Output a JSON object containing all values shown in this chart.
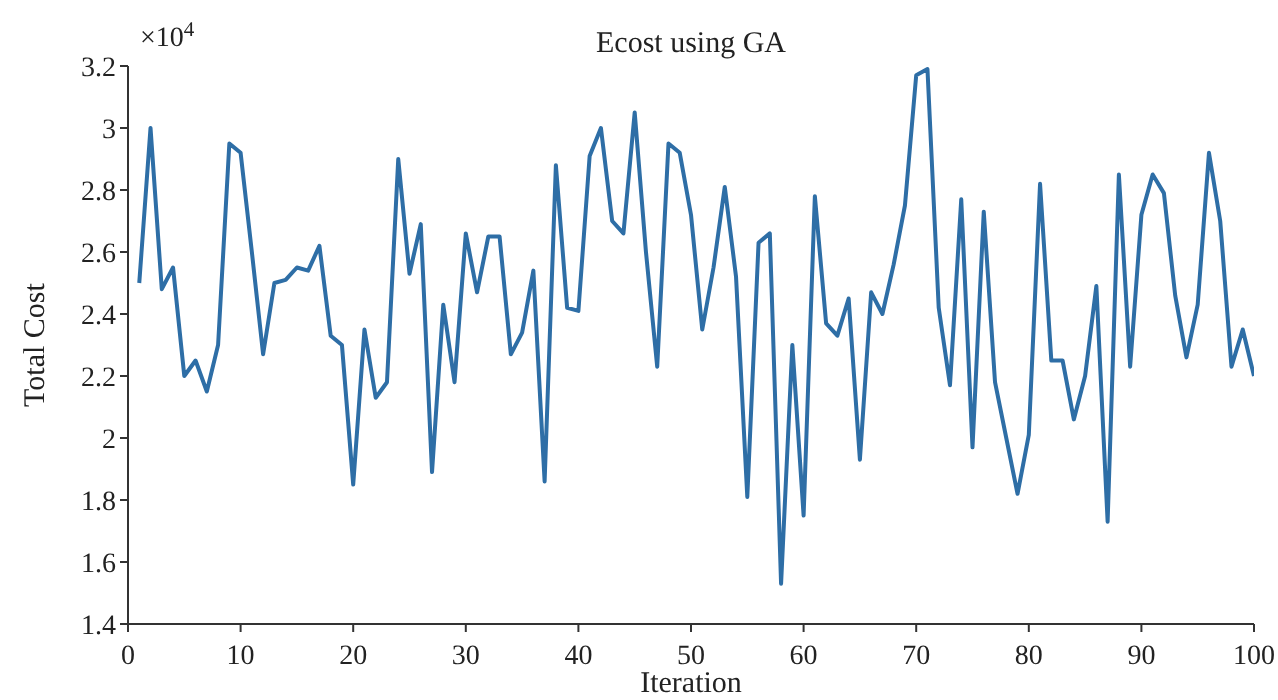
{
  "chart_data": {
    "type": "line",
    "title": "Ecost using GA",
    "xlabel": "Iteration",
    "ylabel": "Total Cost",
    "annotations": [
      "×10$^{4}$"
    ],
    "x": [
      1,
      2,
      3,
      4,
      5,
      6,
      7,
      8,
      9,
      10,
      11,
      12,
      13,
      14,
      15,
      16,
      17,
      18,
      19,
      20,
      21,
      22,
      23,
      24,
      25,
      26,
      27,
      28,
      29,
      30,
      31,
      32,
      33,
      34,
      35,
      36,
      37,
      38,
      39,
      40,
      41,
      42,
      43,
      44,
      45,
      46,
      47,
      48,
      49,
      50,
      51,
      52,
      53,
      54,
      55,
      56,
      57,
      58,
      59,
      60,
      61,
      62,
      63,
      64,
      65,
      66,
      67,
      68,
      69,
      70,
      71,
      72,
      73,
      74,
      75,
      76,
      77,
      78,
      79,
      80,
      81,
      82,
      83,
      84,
      85,
      86,
      87,
      88,
      89,
      90,
      91,
      92,
      93,
      94,
      95,
      96,
      97,
      98,
      99,
      100
    ],
    "series": [
      {
        "color": "#2e6ea6",
        "values": [
          2.5,
          3.0,
          2.48,
          2.55,
          2.2,
          2.25,
          2.15,
          2.3,
          2.95,
          2.92,
          2.6,
          2.27,
          2.5,
          2.51,
          2.55,
          2.54,
          2.62,
          2.33,
          2.3,
          1.85,
          2.35,
          2.13,
          2.18,
          2.9,
          2.53,
          2.69,
          1.89,
          2.43,
          2.18,
          2.66,
          2.47,
          2.65,
          2.65,
          2.27,
          2.34,
          2.54,
          1.86,
          2.88,
          2.42,
          2.41,
          2.91,
          3.0,
          2.7,
          2.66,
          3.05,
          2.6,
          2.23,
          2.95,
          2.92,
          2.72,
          2.35,
          2.55,
          2.81,
          2.52,
          1.81,
          2.63,
          2.66,
          1.53,
          2.3,
          1.75,
          2.78,
          2.37,
          2.33,
          2.45,
          1.93,
          2.47,
          2.4,
          2.56,
          2.75,
          3.17,
          3.19,
          2.42,
          2.17,
          2.77,
          1.97,
          2.73,
          2.18,
          2.0,
          1.82,
          2.01,
          2.82,
          2.25,
          2.25,
          2.06,
          2.2,
          2.49,
          1.73,
          2.85,
          2.23,
          2.72,
          2.85,
          2.79,
          2.46,
          2.26,
          2.43,
          2.92,
          2.7,
          2.23,
          2.35,
          2.2
        ]
      }
    ],
    "xlim": [
      0,
      100
    ],
    "xticks": [
      0,
      10,
      20,
      30,
      40,
      50,
      60,
      70,
      80,
      90,
      100
    ],
    "ylim": [
      1.4,
      3.2
    ],
    "yticks": [
      1.4,
      1.6,
      1.8,
      {
        "value": 2,
        "label": "2"
      },
      2.2,
      2.4,
      2.6,
      2.8,
      {
        "value": 3,
        "label": "3"
      },
      3.2
    ],
    "grid": false,
    "legend": false,
    "marker": "none",
    "line_style": "solid"
  }
}
